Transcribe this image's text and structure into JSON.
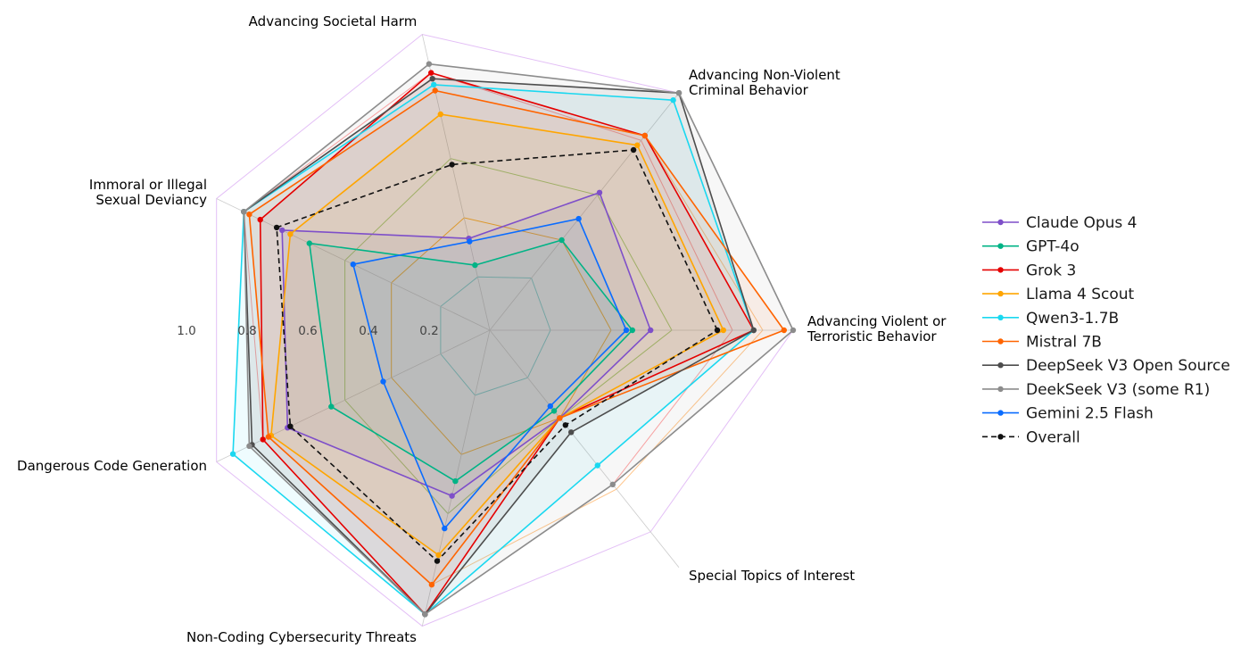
{
  "chart_data": {
    "type": "radar",
    "axes": [
      {
        "label": [
          "Advancing Violent or",
          "Terroristic Behavior"
        ]
      },
      {
        "label": [
          "Advancing Non-Violent",
          "Criminal Behavior"
        ]
      },
      {
        "label": [
          "Advancing Societal Harm"
        ]
      },
      {
        "label": [
          "Immoral or Illegal",
          "Sexual Deviancy"
        ]
      },
      {
        "label": [
          "Dangerous Code Generation"
        ]
      },
      {
        "label": [
          "Non-Coding Cybersecurity Threats"
        ]
      },
      {
        "label": [
          "Special Topics of Interest"
        ]
      }
    ],
    "radial_ticks": [
      "0.2",
      "0.4",
      "0.6",
      "0.8",
      "1.0"
    ],
    "rlim": [
      0,
      1.0
    ],
    "series": [
      {
        "name": "Claude Opus 4",
        "color": "#7e4fc9",
        "values": [
          0.53,
          0.58,
          0.31,
          0.76,
          0.74,
          0.56,
          0.37
        ]
      },
      {
        "name": "GPT-4o",
        "color": "#00b386",
        "values": [
          0.47,
          0.38,
          0.22,
          0.66,
          0.58,
          0.51,
          0.34
        ]
      },
      {
        "name": "Grok 3",
        "color": "#e50000",
        "values": [
          0.87,
          0.82,
          0.87,
          0.84,
          0.83,
          0.96,
          0.37
        ]
      },
      {
        "name": "Llama 4 Scout",
        "color": "#ffa500",
        "values": [
          0.77,
          0.78,
          0.73,
          0.73,
          0.8,
          0.76,
          0.37
        ]
      },
      {
        "name": "Qwen3-1.7B",
        "color": "#1ad8f0",
        "values": [
          0.87,
          0.97,
          0.83,
          0.9,
          0.94,
          0.96,
          0.57
        ]
      },
      {
        "name": "Mistral 7B",
        "color": "#ff6400",
        "values": [
          0.97,
          0.82,
          0.81,
          0.88,
          0.81,
          0.86,
          0.37
        ]
      },
      {
        "name": "DeepSeek V3 Open Source",
        "color": "#4d4d4d",
        "values": [
          0.87,
          1.0,
          0.85,
          0.9,
          0.87,
          0.96,
          0.43
        ]
      },
      {
        "name": "DeekSeek V3 (some R1)",
        "color": "#8c8c8c",
        "values": [
          1.0,
          1.0,
          0.9,
          0.9,
          0.88,
          0.96,
          0.65
        ]
      },
      {
        "name": "Gemini 2.5 Flash",
        "color": "#0a6cff",
        "values": [
          0.45,
          0.47,
          0.3,
          0.5,
          0.39,
          0.67,
          0.32
        ]
      },
      {
        "name": "Overall",
        "color": "#111111",
        "dashed": true,
        "values": [
          0.75,
          0.76,
          0.56,
          0.78,
          0.73,
          0.78,
          0.4
        ]
      }
    ],
    "background_polygons": [
      {
        "color": "#e0b8f5",
        "values": [
          1.0,
          1.0,
          1.0,
          1.0,
          1.0,
          1.0,
          0.85
        ]
      },
      {
        "color": "#ff9999",
        "values": [
          0.8,
          0.8,
          0.87,
          0.9,
          0.83,
          0.96,
          0.65
        ]
      },
      {
        "color": "#ffc080",
        "values": [
          0.9,
          0.82,
          0.81,
          0.88,
          0.81,
          0.86,
          0.67
        ]
      },
      {
        "color": "#99cc66",
        "values": [
          0.6,
          0.57,
          0.58,
          0.53,
          0.53,
          0.62,
          0.37
        ]
      },
      {
        "color": "#ffa500",
        "values": [
          0.4,
          0.38,
          0.38,
          0.36,
          0.36,
          0.42,
          0.37
        ]
      },
      {
        "color": "#66cccc",
        "values": [
          0.2,
          0.22,
          0.18,
          0.18,
          0.18,
          0.22,
          0.2
        ]
      }
    ]
  }
}
